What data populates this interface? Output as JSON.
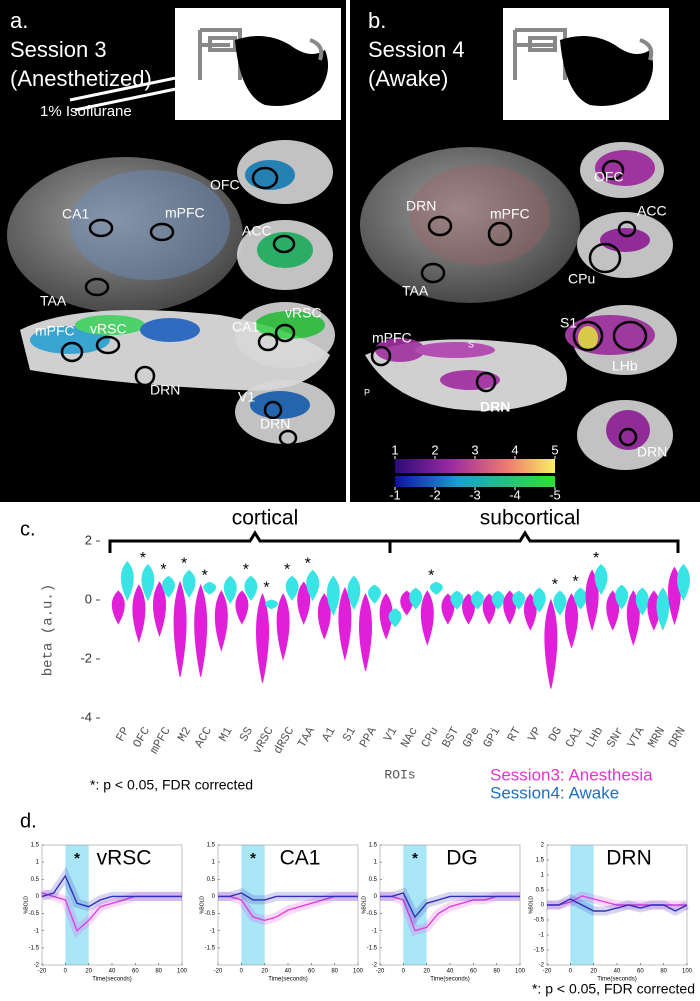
{
  "panel_a": {
    "label": "a.",
    "session": "Session 3",
    "condition": "(Anesthetized)",
    "drug": "1% Isoflurane",
    "labels": [
      "CA1",
      "mPFC",
      "TAA",
      "mPFC",
      "vRSC",
      "DRN",
      "OFC",
      "ACC",
      "CA1",
      "vRSC",
      "V1",
      "DRN"
    ]
  },
  "panel_b": {
    "label": "b.",
    "session": "Session 4",
    "condition": "(Awake)",
    "labels": [
      "DRN",
      "mPFC",
      "TAA",
      "mPFC",
      "S",
      "P",
      "DRN",
      "OFC",
      "ACC",
      "CPu",
      "S1",
      "LHb",
      "DRN"
    ],
    "colorbar": {
      "positive": {
        "lim": [
          1,
          5
        ],
        "ticks": [
          1,
          2,
          3,
          4,
          5
        ]
      },
      "negative": {
        "lim": [
          -1,
          -5
        ],
        "ticks": [
          -1,
          -2,
          -3,
          -4,
          -5
        ]
      }
    }
  },
  "panel_c_label": "c.",
  "panel_d_label": "d.",
  "footnote": "*: p < 0.05, FDR corrected",
  "chart_data": [
    {
      "type": "violin",
      "ylabel": "beta (a.u.)",
      "xlabel": "ROIs",
      "ylim": [
        -4,
        2
      ],
      "yticks": [
        -4,
        -2,
        0,
        2
      ],
      "groups": [
        "cortical",
        "subcortical"
      ],
      "significance_marker": "*",
      "categories": [
        "FP",
        "OFC",
        "mPFC",
        "M2",
        "ACC",
        "M1",
        "SS",
        "vRSC",
        "dRSC",
        "TAA",
        "A1",
        "S1",
        "PPA",
        "V1",
        "NAc",
        "CPu",
        "BST",
        "GPe",
        "GPi",
        "RT",
        "VP",
        "DG",
        "CA1",
        "LHb",
        "SNr",
        "VTA",
        "MRN",
        "DRN"
      ],
      "significant": [
        false,
        true,
        true,
        true,
        true,
        false,
        true,
        true,
        true,
        true,
        false,
        false,
        false,
        false,
        false,
        true,
        false,
        false,
        false,
        false,
        false,
        true,
        true,
        true,
        false,
        false,
        false,
        false
      ],
      "series": [
        {
          "name": "Session3: Anesthesia",
          "color": "#e020d8",
          "legend_color": "#e632d6",
          "min": [
            -0.8,
            -1.4,
            -1.2,
            -2.6,
            -2.6,
            -1.7,
            -0.8,
            -2.8,
            -2.0,
            -0.8,
            -1.3,
            -2.0,
            -2.4,
            -1.3,
            -0.5,
            -1.5,
            -0.8,
            -0.8,
            -0.8,
            -0.8,
            -1.0,
            -3.0,
            -1.6,
            -1.0,
            -1.0,
            -1.5,
            -1.0,
            -0.8
          ],
          "max": [
            0.3,
            0.5,
            0.6,
            0.6,
            0.5,
            0.3,
            0.3,
            0.2,
            0.2,
            0.6,
            0.2,
            0.4,
            0.2,
            0.2,
            0.3,
            0.3,
            0.2,
            0.2,
            0.2,
            0.3,
            0.2,
            0.0,
            0.2,
            1.0,
            0.3,
            0.3,
            0.3,
            1.1
          ]
        },
        {
          "name": "Session4: Awake",
          "color": "#38e4e4",
          "legend_color": "#1e6fc0",
          "min": [
            0.0,
            0.0,
            0.1,
            0.1,
            0.2,
            -0.1,
            0.0,
            -0.3,
            0.0,
            0.0,
            -0.5,
            -0.3,
            -0.1,
            -0.9,
            -0.3,
            0.2,
            -0.3,
            -0.3,
            -0.3,
            -0.3,
            -0.4,
            -0.5,
            -0.3,
            0.2,
            -0.3,
            -0.5,
            -1.0,
            0.0
          ],
          "max": [
            1.3,
            1.2,
            0.8,
            1.0,
            0.6,
            0.8,
            0.8,
            0.0,
            0.8,
            1.0,
            0.8,
            0.8,
            0.5,
            -0.3,
            0.4,
            0.6,
            0.3,
            0.3,
            0.3,
            0.3,
            0.4,
            0.3,
            0.4,
            1.2,
            0.5,
            0.4,
            0.4,
            1.2
          ]
        }
      ]
    },
    {
      "type": "line",
      "title": "vRSC",
      "xlabel": "Time(seconds)",
      "ylabel": "%BOLD",
      "significance_marker": "*",
      "stimulus": [
        0,
        20
      ],
      "xlim": [
        -20,
        100
      ],
      "xticks": [
        -20,
        0,
        20,
        40,
        60,
        80,
        100
      ],
      "ylim": [
        -2,
        1.5
      ],
      "yticks": [
        -2,
        -1.5,
        -1,
        -0.5,
        0,
        0.5,
        1,
        1.5
      ],
      "x": [
        -20,
        -10,
        0,
        10,
        20,
        30,
        40,
        50,
        60,
        70,
        80,
        90,
        100
      ],
      "series": [
        {
          "color": "#e040e0",
          "values": [
            0.1,
            0,
            -0.1,
            -1.0,
            -0.7,
            -0.3,
            -0.2,
            -0.1,
            0,
            0,
            0,
            0,
            0
          ]
        },
        {
          "color": "#3030b8",
          "values": [
            0,
            0.1,
            0.6,
            -0.2,
            -0.3,
            -0.1,
            0,
            0,
            0,
            0,
            0,
            0,
            0
          ]
        }
      ]
    },
    {
      "type": "line",
      "title": "CA1",
      "xlabel": "Time(seconds)",
      "ylabel": "%BOLD",
      "significance_marker": "*",
      "stimulus": [
        0,
        20
      ],
      "xlim": [
        -20,
        100
      ],
      "xticks": [
        -20,
        0,
        20,
        40,
        60,
        80,
        100
      ],
      "ylim": [
        -2,
        1.5
      ],
      "yticks": [
        -1.5,
        -1,
        -0.5,
        0,
        0.5,
        1,
        1.5
      ],
      "x": [
        -20,
        -10,
        0,
        10,
        20,
        30,
        40,
        50,
        60,
        70,
        80,
        90,
        100
      ],
      "series": [
        {
          "color": "#e040e0",
          "values": [
            0,
            0,
            -0.1,
            -0.6,
            -0.7,
            -0.6,
            -0.4,
            -0.3,
            -0.2,
            -0.1,
            0,
            0,
            0
          ]
        },
        {
          "color": "#3030b8",
          "values": [
            0,
            0,
            0.1,
            -0.1,
            -0.1,
            0,
            0,
            0,
            0,
            0,
            0,
            0,
            0
          ]
        }
      ]
    },
    {
      "type": "line",
      "title": "DG",
      "xlabel": "Time(seconds)",
      "ylabel": "%BOLD",
      "significance_marker": "*",
      "stimulus": [
        0,
        20
      ],
      "xlim": [
        -20,
        100
      ],
      "xticks": [
        -20,
        0,
        20,
        40,
        60,
        80,
        100
      ],
      "ylim": [
        -2,
        1.5
      ],
      "yticks": [
        -2,
        -1.5,
        -1,
        -0.5,
        0,
        0.5,
        1,
        1.5
      ],
      "x": [
        -20,
        -10,
        0,
        10,
        20,
        30,
        40,
        50,
        60,
        70,
        80,
        90,
        100
      ],
      "series": [
        {
          "color": "#e040e0",
          "values": [
            0,
            0,
            -0.1,
            -1.0,
            -0.9,
            -0.5,
            -0.3,
            -0.2,
            -0.1,
            -0.1,
            0,
            0,
            0
          ]
        },
        {
          "color": "#3030b8",
          "values": [
            0,
            0,
            0.1,
            -0.6,
            -0.2,
            -0.1,
            0,
            0,
            0,
            0,
            0,
            0,
            0
          ]
        }
      ]
    },
    {
      "type": "line",
      "title": "DRN",
      "xlabel": "Time(seconds)",
      "ylabel": "%BOLD",
      "stimulus": [
        0,
        20
      ],
      "xlim": [
        -20,
        100
      ],
      "xticks": [
        -20,
        0,
        20,
        40,
        60,
        80,
        100
      ],
      "ylim": [
        -2,
        2
      ],
      "yticks": [
        -2,
        -1.5,
        -1,
        -0.5,
        0,
        0.5,
        1,
        1.5,
        2
      ],
      "x": [
        -20,
        -10,
        0,
        10,
        20,
        30,
        40,
        50,
        60,
        70,
        80,
        90,
        100
      ],
      "series": [
        {
          "color": "#e040e0",
          "values": [
            0,
            0,
            0.1,
            0.3,
            0.2,
            0.1,
            0,
            0,
            0,
            0,
            0,
            0,
            0
          ]
        },
        {
          "color": "#3030b8",
          "values": [
            0,
            0,
            0.2,
            0,
            -0.2,
            -0.2,
            -0.1,
            0,
            -0.1,
            0,
            0,
            -0.2,
            0
          ]
        }
      ]
    }
  ]
}
